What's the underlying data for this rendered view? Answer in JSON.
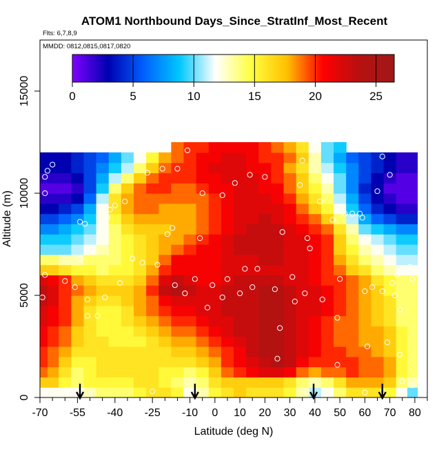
{
  "chart_data": {
    "type": "heatmap",
    "title": "ATOM1 Northbound Days_Since_StratInf_Most_Recent",
    "subtitle_flights": "Flts: 6,7,8,9",
    "subtitle_dates": "MMDD: 0812,0815,0817,0820",
    "xlabel": "Latitude (deg N)",
    "ylabel": "Altitude (m)",
    "xlim": [
      -70,
      85
    ],
    "ylim": [
      0,
      17500
    ],
    "x_ticks": [
      -70,
      -55,
      -40,
      -25,
      -10,
      0,
      10,
      20,
      30,
      40,
      50,
      60,
      70,
      80
    ],
    "x_tick_labels": [
      "-70",
      "-55",
      "-40",
      "-25",
      "-10",
      "0",
      "10",
      "20",
      "30",
      "40",
      "50",
      "60",
      "70",
      "80"
    ],
    "x_minor_ticks": [
      -65,
      -60,
      -50,
      -45,
      -35,
      -30,
      -20,
      -15,
      -5,
      5,
      15,
      25,
      35,
      45,
      55,
      65,
      75,
      85
    ],
    "y_ticks": [
      0,
      5000,
      10000,
      15000
    ],
    "y_tick_labels": [
      "0",
      "5000",
      "10000",
      "15000"
    ],
    "colorbar": {
      "range": [
        0,
        26.5
      ],
      "ticks": [
        0,
        5,
        10,
        15,
        20,
        25
      ],
      "tick_labels": [
        "0",
        "5",
        "10",
        "15",
        "20",
        "25"
      ],
      "colors": [
        "#7f00ff",
        "#0000b0",
        "#0060ff",
        "#00c8ff",
        "#ffffff",
        "#ffff40",
        "#ffc000",
        "#ff0000",
        "#b81010",
        "#a01818"
      ]
    },
    "profile_arrows_lat": [
      -54,
      -8,
      39.5,
      67
    ],
    "x_lat": [
      -69,
      -65,
      -60,
      -55,
      -50,
      -45,
      -40,
      -35,
      -30,
      -25,
      -20,
      -15,
      -10,
      -5,
      0,
      5,
      10,
      15,
      20,
      25,
      30,
      35,
      40,
      45,
      50,
      55,
      60,
      65,
      70,
      75,
      79
    ],
    "y_alt": [
      250,
      750,
      1250,
      1750,
      2250,
      2750,
      3250,
      3750,
      4250,
      4750,
      5250,
      5750,
      6250,
      6750,
      7250,
      7750,
      8250,
      8750,
      9250,
      9750,
      10250,
      10750,
      11250,
      11750,
      12250
    ],
    "z_days": [
      [
        12,
        12,
        12,
        12,
        13,
        14,
        14,
        14,
        15,
        16,
        16,
        15,
        12,
        13,
        15,
        16,
        17,
        16,
        16,
        16,
        15,
        13,
        11,
        12,
        14,
        16,
        16,
        16,
        15,
        12,
        10
      ],
      [
        17,
        17,
        15,
        14,
        15,
        15,
        15,
        15,
        16,
        16,
        15,
        14,
        13,
        14,
        16,
        17,
        17,
        17,
        17,
        17,
        16,
        14,
        13,
        14,
        16,
        18,
        18,
        18,
        17,
        14,
        13
      ],
      [
        19,
        18,
        16,
        14,
        15,
        16,
        16,
        16,
        16,
        16,
        15,
        15,
        14,
        15,
        17,
        19,
        20,
        21,
        22,
        22,
        21,
        19,
        18,
        19,
        19,
        20,
        19,
        19,
        18,
        15,
        14
      ],
      [
        20,
        19,
        17,
        15,
        15,
        16,
        16,
        16,
        16,
        16,
        16,
        16,
        16,
        17,
        18,
        20,
        21,
        22,
        23,
        24,
        23,
        21,
        20,
        20,
        20,
        20,
        19,
        19,
        18,
        15,
        14
      ],
      [
        20,
        19,
        18,
        16,
        16,
        16,
        16,
        16,
        16,
        16,
        16,
        17,
        17,
        18,
        19,
        20,
        21,
        23,
        24,
        24,
        23,
        22,
        21,
        20,
        20,
        19,
        19,
        18,
        17,
        15,
        14
      ],
      [
        21,
        20,
        19,
        17,
        16,
        16,
        15,
        15,
        15,
        16,
        17,
        18,
        18,
        19,
        20,
        21,
        22,
        23,
        24,
        24,
        23,
        22,
        21,
        20,
        19,
        19,
        18,
        18,
        17,
        15,
        14
      ],
      [
        21,
        20,
        19,
        17,
        16,
        15,
        15,
        15,
        16,
        17,
        18,
        19,
        19,
        20,
        21,
        22,
        23,
        23,
        24,
        24,
        23,
        22,
        21,
        20,
        19,
        19,
        18,
        18,
        17,
        15,
        14
      ],
      [
        22,
        21,
        20,
        18,
        16,
        15,
        15,
        16,
        17,
        18,
        19,
        20,
        20,
        21,
        22,
        22,
        23,
        23,
        24,
        24,
        23,
        22,
        21,
        20,
        19,
        19,
        18,
        17,
        16,
        14,
        14
      ],
      [
        22,
        21,
        20,
        18,
        16,
        15,
        15,
        16,
        18,
        19,
        20,
        21,
        21,
        22,
        22,
        23,
        23,
        23,
        24,
        24,
        23,
        22,
        22,
        21,
        20,
        19,
        18,
        17,
        16,
        14,
        14
      ],
      [
        23,
        22,
        20,
        18,
        17,
        16,
        16,
        17,
        18,
        19,
        21,
        22,
        22,
        22,
        22,
        23,
        23,
        23,
        24,
        24,
        23,
        22,
        22,
        21,
        20,
        19,
        18,
        17,
        16,
        14,
        14
      ],
      [
        23,
        22,
        20,
        19,
        18,
        17,
        17,
        17,
        18,
        20,
        23,
        24,
        23,
        22,
        22,
        23,
        23,
        23,
        24,
        24,
        23,
        22,
        22,
        21,
        20,
        19,
        18,
        17,
        15,
        14,
        14
      ],
      [
        22,
        21,
        20,
        18,
        17,
        16,
        16,
        16,
        17,
        19,
        22,
        23,
        22,
        21,
        21,
        22,
        23,
        23,
        23,
        23,
        22,
        22,
        21,
        20,
        20,
        19,
        18,
        16,
        15,
        14,
        14
      ],
      [
        17,
        17,
        16,
        15,
        15,
        14,
        15,
        15,
        16,
        18,
        20,
        21,
        21,
        21,
        21,
        22,
        22,
        22,
        22,
        22,
        22,
        22,
        21,
        20,
        19,
        17,
        16,
        14,
        13,
        12,
        12
      ],
      [
        14,
        14,
        13,
        13,
        14,
        14,
        14,
        15,
        16,
        17,
        19,
        21,
        21,
        21,
        21,
        22,
        22,
        22,
        23,
        23,
        22,
        22,
        21,
        20,
        18,
        16,
        14,
        13,
        12,
        11,
        11
      ],
      [
        10,
        10,
        10,
        11,
        12,
        13,
        14,
        15,
        16,
        17,
        18,
        19,
        20,
        21,
        21,
        22,
        23,
        23,
        23,
        23,
        22,
        22,
        21,
        20,
        17,
        15,
        13,
        12,
        11,
        10,
        10
      ],
      [
        9,
        9,
        9,
        10,
        11,
        12,
        14,
        15,
        16,
        17,
        18,
        18,
        19,
        20,
        21,
        22,
        23,
        23,
        23,
        23,
        22,
        22,
        21,
        20,
        17,
        14,
        12,
        11,
        10,
        9,
        9
      ],
      [
        7,
        7,
        8,
        9,
        10,
        12,
        14,
        16,
        17,
        17,
        17,
        18,
        18,
        19,
        20,
        21,
        22,
        23,
        23,
        23,
        22,
        21,
        20,
        19,
        16,
        13,
        10,
        9,
        8,
        7,
        7
      ],
      [
        5,
        5,
        6,
        7,
        9,
        12,
        15,
        17,
        18,
        18,
        18,
        18,
        18,
        19,
        20,
        21,
        22,
        22,
        23,
        22,
        21,
        20,
        19,
        17,
        14,
        11,
        8,
        6,
        5,
        4,
        4
      ],
      [
        3,
        3,
        4,
        5,
        8,
        12,
        16,
        18,
        19,
        19,
        18,
        18,
        18,
        19,
        20,
        21,
        22,
        22,
        22,
        22,
        21,
        19,
        17,
        15,
        12,
        9,
        6,
        4,
        3,
        2,
        2
      ],
      [
        2,
        2,
        2,
        3,
        6,
        11,
        16,
        18,
        19,
        19,
        19,
        19,
        19,
        19,
        20,
        21,
        22,
        22,
        22,
        21,
        20,
        18,
        16,
        14,
        11,
        8,
        5,
        3,
        2,
        1,
        1
      ],
      [
        1,
        1,
        1,
        2,
        5,
        9,
        14,
        17,
        19,
        20,
        20,
        19,
        19,
        20,
        21,
        21,
        22,
        22,
        21,
        21,
        19,
        17,
        15,
        13,
        10,
        7,
        4,
        3,
        1,
        1,
        1
      ],
      [
        2,
        2,
        2,
        3,
        5,
        8,
        11,
        14,
        17,
        19,
        20,
        20,
        20,
        21,
        21,
        22,
        22,
        22,
        21,
        20,
        19,
        17,
        14,
        12,
        10,
        7,
        5,
        3,
        2,
        1,
        1
      ],
      [
        3,
        3,
        3,
        4,
        5,
        7,
        9,
        11,
        14,
        17,
        19,
        20,
        20,
        21,
        22,
        22,
        22,
        21,
        21,
        20,
        18,
        16,
        13,
        11,
        9,
        7,
        5,
        4,
        3,
        2,
        2
      ],
      [
        3,
        3,
        3,
        4,
        5,
        6,
        8,
        10,
        12,
        15,
        18,
        19,
        20,
        21,
        21,
        22,
        22,
        21,
        20,
        20,
        19,
        17,
        13,
        10,
        8,
        6,
        5,
        4,
        3,
        2,
        2
      ],
      [
        null,
        null,
        null,
        null,
        null,
        null,
        null,
        null,
        null,
        null,
        null,
        19,
        20,
        20,
        21,
        21,
        21,
        21,
        20,
        19,
        18,
        16,
        12,
        10,
        9,
        null,
        null,
        null,
        null,
        null,
        null
      ]
    ],
    "observation_points": [
      [
        -68,
        300
      ],
      [
        -68,
        6000
      ],
      [
        -69,
        4900
      ],
      [
        -68,
        10000
      ],
      [
        -68,
        10800
      ],
      [
        -67,
        11100
      ],
      [
        -65,
        11400
      ],
      [
        -60,
        5700
      ],
      [
        -59,
        250
      ],
      [
        -56,
        5400
      ],
      [
        -56,
        250
      ],
      [
        -54,
        6800
      ],
      [
        -54,
        8600
      ],
      [
        -52,
        8500
      ],
      [
        -51,
        4000
      ],
      [
        -51,
        4800
      ],
      [
        -50,
        150
      ],
      [
        -47,
        4000
      ],
      [
        -44,
        4900
      ],
      [
        -43,
        8800
      ],
      [
        -42,
        9200
      ],
      [
        -40,
        9400
      ],
      [
        -38,
        5600
      ],
      [
        -36,
        9600
      ],
      [
        -33,
        6800
      ],
      [
        -29,
        6600
      ],
      [
        -27,
        11000
      ],
      [
        -25,
        300
      ],
      [
        -23,
        6500
      ],
      [
        -21,
        11200
      ],
      [
        -19,
        8000
      ],
      [
        -17,
        8300
      ],
      [
        -16,
        5500
      ],
      [
        -15,
        11200
      ],
      [
        -12,
        5100
      ],
      [
        -11,
        12100
      ],
      [
        -8,
        5800
      ],
      [
        -6,
        7800
      ],
      [
        -5,
        10000
      ],
      [
        -3,
        4400
      ],
      [
        -1,
        5500
      ],
      [
        3,
        9900
      ],
      [
        3,
        4900
      ],
      [
        5,
        5800
      ],
      [
        8,
        10500
      ],
      [
        10,
        5100
      ],
      [
        12,
        6300
      ],
      [
        14,
        10900
      ],
      [
        15,
        5400
      ],
      [
        17,
        6300
      ],
      [
        20,
        10800
      ],
      [
        24,
        5300
      ],
      [
        25,
        1900
      ],
      [
        26,
        3400
      ],
      [
        27,
        8100
      ],
      [
        31,
        5900
      ],
      [
        32,
        4700
      ],
      [
        34,
        10400
      ],
      [
        35,
        11600
      ],
      [
        36,
        5100
      ],
      [
        37,
        7800
      ],
      [
        38,
        7300
      ],
      [
        42,
        9600
      ],
      [
        43,
        4800
      ],
      [
        47,
        8700
      ],
      [
        49,
        3900
      ],
      [
        49,
        1600
      ],
      [
        50,
        5800
      ],
      [
        52,
        9000
      ],
      [
        55,
        9000
      ],
      [
        58,
        9000
      ],
      [
        59,
        8800
      ],
      [
        60,
        5200
      ],
      [
        61,
        2500
      ],
      [
        63,
        5400
      ],
      [
        65,
        10100
      ],
      [
        67,
        11800
      ],
      [
        67,
        5200
      ],
      [
        69,
        2700
      ],
      [
        70,
        10900
      ],
      [
        71,
        5600
      ],
      [
        72,
        5000
      ],
      [
        73,
        6000
      ],
      [
        74,
        4300
      ],
      [
        74,
        2100
      ],
      [
        75,
        800
      ],
      [
        76,
        6200
      ],
      [
        78,
        6400
      ],
      [
        79,
        5800
      ],
      [
        79,
        600
      ],
      [
        37,
        300
      ],
      [
        60,
        250
      ],
      [
        74,
        200
      ],
      [
        67,
        300
      ]
    ]
  }
}
